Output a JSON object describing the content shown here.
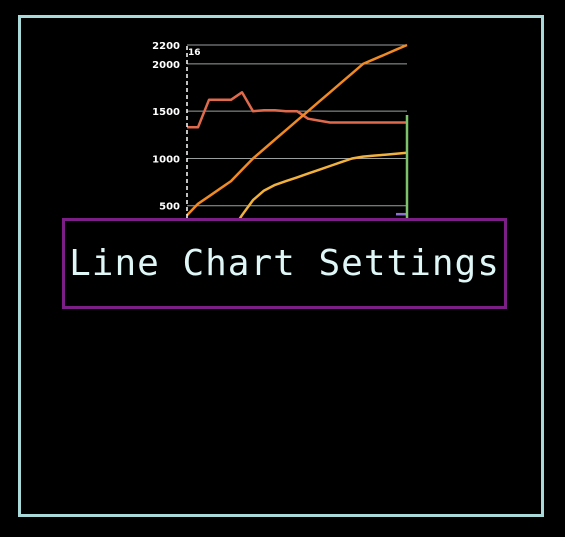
{
  "banner": {
    "title": "Line Chart Settings"
  },
  "chart_data": {
    "type": "line",
    "y_ticks": [
      "2200",
      "2000",
      "1500",
      "1000",
      "500"
    ],
    "cursor": "16",
    "ylim": [
      0,
      2200
    ],
    "grid": true,
    "x": [
      0,
      5,
      10,
      15,
      20,
      25,
      30,
      35,
      40,
      45,
      50,
      55,
      60,
      65,
      70,
      75,
      80,
      85,
      90,
      95,
      100
    ],
    "series": [
      {
        "color": "#e06a4c",
        "values": [
          1330,
          1330,
          1620,
          1620,
          1620,
          1700,
          1500,
          1510,
          1510,
          1500,
          1500,
          1420,
          1400,
          1380,
          1380,
          1380,
          1380,
          1380,
          1380,
          1380,
          1380
        ]
      },
      {
        "color": "#f08a24",
        "values": [
          400,
          520,
          600,
          680,
          760,
          880,
          1000,
          1100,
          1200,
          1300,
          1400,
          1500,
          1600,
          1700,
          1800,
          1900,
          2000,
          2050,
          2100,
          2150,
          2200
        ]
      },
      {
        "color": "#f2b13c",
        "values": [
          null,
          null,
          null,
          null,
          220,
          400,
          560,
          660,
          720,
          760,
          800,
          840,
          880,
          920,
          960,
          1000,
          1020,
          1030,
          1040,
          1050,
          1060
        ]
      },
      {
        "color": "#7cc36b",
        "values": [
          null,
          null,
          null,
          null,
          null,
          null,
          null,
          null,
          null,
          null,
          null,
          null,
          null,
          null,
          null,
          null,
          null,
          null,
          null,
          null,
          1460
        ]
      },
      {
        "color": "#8c6fd1",
        "values": [
          null,
          null,
          null,
          null,
          null,
          null,
          null,
          null,
          null,
          null,
          null,
          null,
          null,
          null,
          null,
          null,
          null,
          null,
          null,
          410,
          410
        ]
      }
    ],
    "colors": {
      "frame": "#a9d9d9",
      "banner_border": "#7b1f86",
      "grid": "#9aa0a0"
    }
  }
}
